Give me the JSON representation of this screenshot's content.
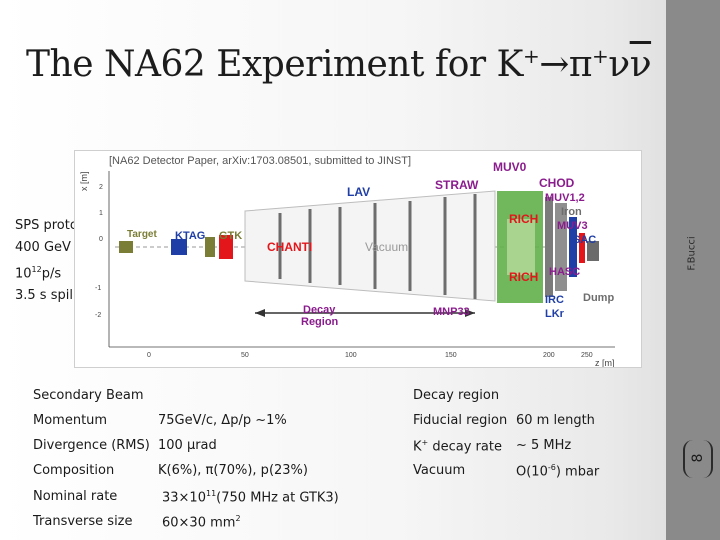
{
  "title": {
    "prefix": "The NA62 Experiment for K",
    "kplus": "+",
    "arrow": "→π",
    "piplus": "+",
    "nu": "ν",
    "nubar": "ν"
  },
  "author": "F.Bucci",
  "page_number": "8",
  "beam_info": {
    "line1": "SPS proton",
    "line2": "400 GeV",
    "line3_base": "10",
    "line3_exp": "12",
    "line3_rest": "p/s",
    "line4": "3.5 s spill"
  },
  "diagram": {
    "header": "[NA62 Detector Paper, arXiv:1703.08501, submitted to JINST]",
    "y_axis_label": "x [m]",
    "y_ticks": [
      "2",
      "1",
      "0",
      "-1",
      "-2"
    ],
    "x_ticks": [
      "0",
      "50",
      "100",
      "150",
      "200",
      "250"
    ],
    "x_axis_label": "z [m]",
    "labels": {
      "muv0": "MUV0",
      "lav": "LAV",
      "straw": "STRAW",
      "chod": "CHOD",
      "muv12": "MUV1,2",
      "iron": "Iron",
      "muv3": "MUV3",
      "sac": "SAC",
      "target": "Target",
      "ktag": "KTAG",
      "gtk": "GTK",
      "chanti": "CHANTI",
      "vacuum": "Vacuum",
      "rich_top": "RICH",
      "rich_bottom": "RICH",
      "hasc": "HASC",
      "irc": "IRC",
      "dump": "Dump",
      "lkr": "LKr",
      "decay_region": "Decay\nRegion",
      "mnp33": "MNP33"
    },
    "colors": {
      "purple": "#8b1c8e",
      "blue": "#1f3ea6",
      "red": "#e3161b",
      "green": "#62b04b",
      "gray": "#6d6d6d",
      "olive": "#7a7d35"
    }
  },
  "left_table": {
    "header": "Secondary Beam",
    "rows": [
      {
        "label": "Momentum",
        "value": "75GeV/c, Δp/p ~1%"
      },
      {
        "label": "Divergence (RMS)",
        "value": "100 μrad"
      },
      {
        "label": "Composition",
        "value": "K(6%), π(70%), p(23%)"
      },
      {
        "label": "Nominal rate",
        "value_base": "33×10",
        "value_exp": "11",
        "value_rest": "(750 MHz at GTK3)"
      },
      {
        "label": "Transverse size",
        "value_base": "60×30 mm",
        "value_exp": "2"
      }
    ]
  },
  "right_table": {
    "header": "Decay region",
    "rows": [
      {
        "label": "Fiducial region",
        "value": "60 m length"
      },
      {
        "label_base": "K",
        "label_exp": "+",
        "label_rest": " decay rate",
        "value": "~ 5 MHz"
      },
      {
        "label": "Vacuum",
        "value_base": "O(10",
        "value_exp": "-6",
        "value_rest": ") mbar"
      }
    ]
  }
}
